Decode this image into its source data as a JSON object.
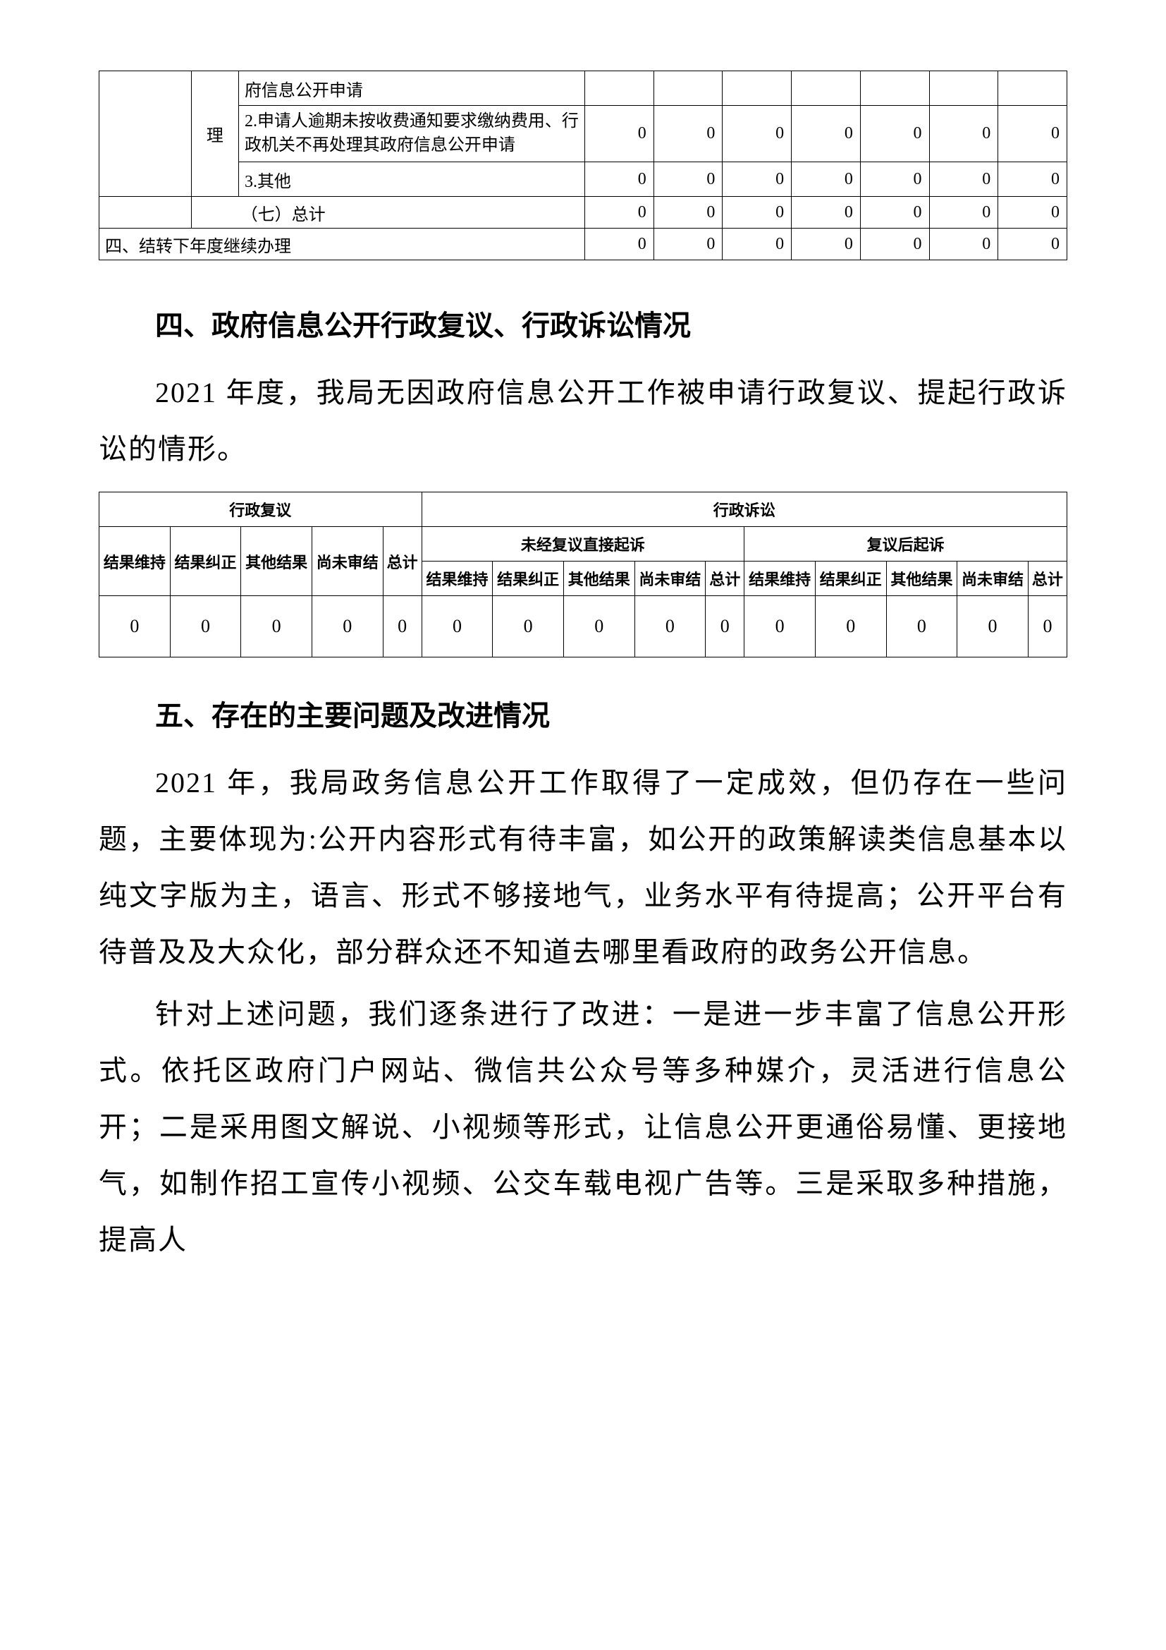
{
  "table1": {
    "c1_label": "理",
    "r1": {
      "label": "府信息公开申请",
      "v": [
        "",
        "",
        "",
        "",
        "",
        "",
        ""
      ]
    },
    "r2": {
      "label": "2.申请人逾期未按收费通知要求缴纳费用、行政机关不再处理其政府信息公开申请",
      "v": [
        "0",
        "0",
        "0",
        "0",
        "0",
        "0",
        "0"
      ]
    },
    "r3": {
      "label": "3.其他",
      "v": [
        "0",
        "0",
        "0",
        "0",
        "0",
        "0",
        "0"
      ]
    },
    "r4": {
      "label": "（七）总计",
      "v": [
        "0",
        "0",
        "0",
        "0",
        "0",
        "0",
        "0"
      ]
    },
    "r5": {
      "label": "四、结转下年度继续办理",
      "v": [
        "0",
        "0",
        "0",
        "0",
        "0",
        "0",
        "0"
      ]
    }
  },
  "section4": {
    "heading": "四、政府信息公开行政复议、行政诉讼情况",
    "para": "2021 年度，我局无因政府信息公开工作被申请行政复议、提起行政诉讼的情形。"
  },
  "table2": {
    "h_fuyi": "行政复议",
    "h_susong": "行政诉讼",
    "h_weijing": "未经复议直接起诉",
    "h_fuyihou": "复议后起诉",
    "cols": [
      "结果维持",
      "结果纠正",
      "其他结果",
      "尚未审结",
      "总计",
      "结果维持",
      "结果纠正",
      "其他结果",
      "尚未审结",
      "总计",
      "结果维持",
      "结果纠正",
      "其他结果",
      "尚未审结",
      "总计"
    ],
    "vals": [
      "0",
      "0",
      "0",
      "0",
      "0",
      "0",
      "0",
      "0",
      "0",
      "0",
      "0",
      "0",
      "0",
      "0",
      "0"
    ]
  },
  "section5": {
    "heading": "五、存在的主要问题及改进情况",
    "para1": "2021 年，我局政务信息公开工作取得了一定成效，但仍存在一些问题，主要体现为:公开内容形式有待丰富，如公开的政策解读类信息基本以纯文字版为主，语言、形式不够接地气，业务水平有待提高；公开平台有待普及及大众化，部分群众还不知道去哪里看政府的政务公开信息。",
    "para2": "针对上述问题，我们逐条进行了改进：一是进一步丰富了信息公开形式。依托区政府门户网站、微信共公众号等多种媒介，灵活进行信息公开；二是采用图文解说、小视频等形式，让信息公开更通俗易懂、更接地气，如制作招工宣传小视频、公交车载电视广告等。三是采取多种措施，提高人"
  },
  "styles": {
    "background_color": "#ffffff",
    "text_color": "#000000",
    "border_color": "#000000",
    "body_font": "FangSong",
    "heading_font": "SimHei",
    "table_font": "SimSun",
    "heading_fontsize": 40,
    "para_fontsize": 40,
    "table_fontsize": 24,
    "line_height": 2.0
  }
}
